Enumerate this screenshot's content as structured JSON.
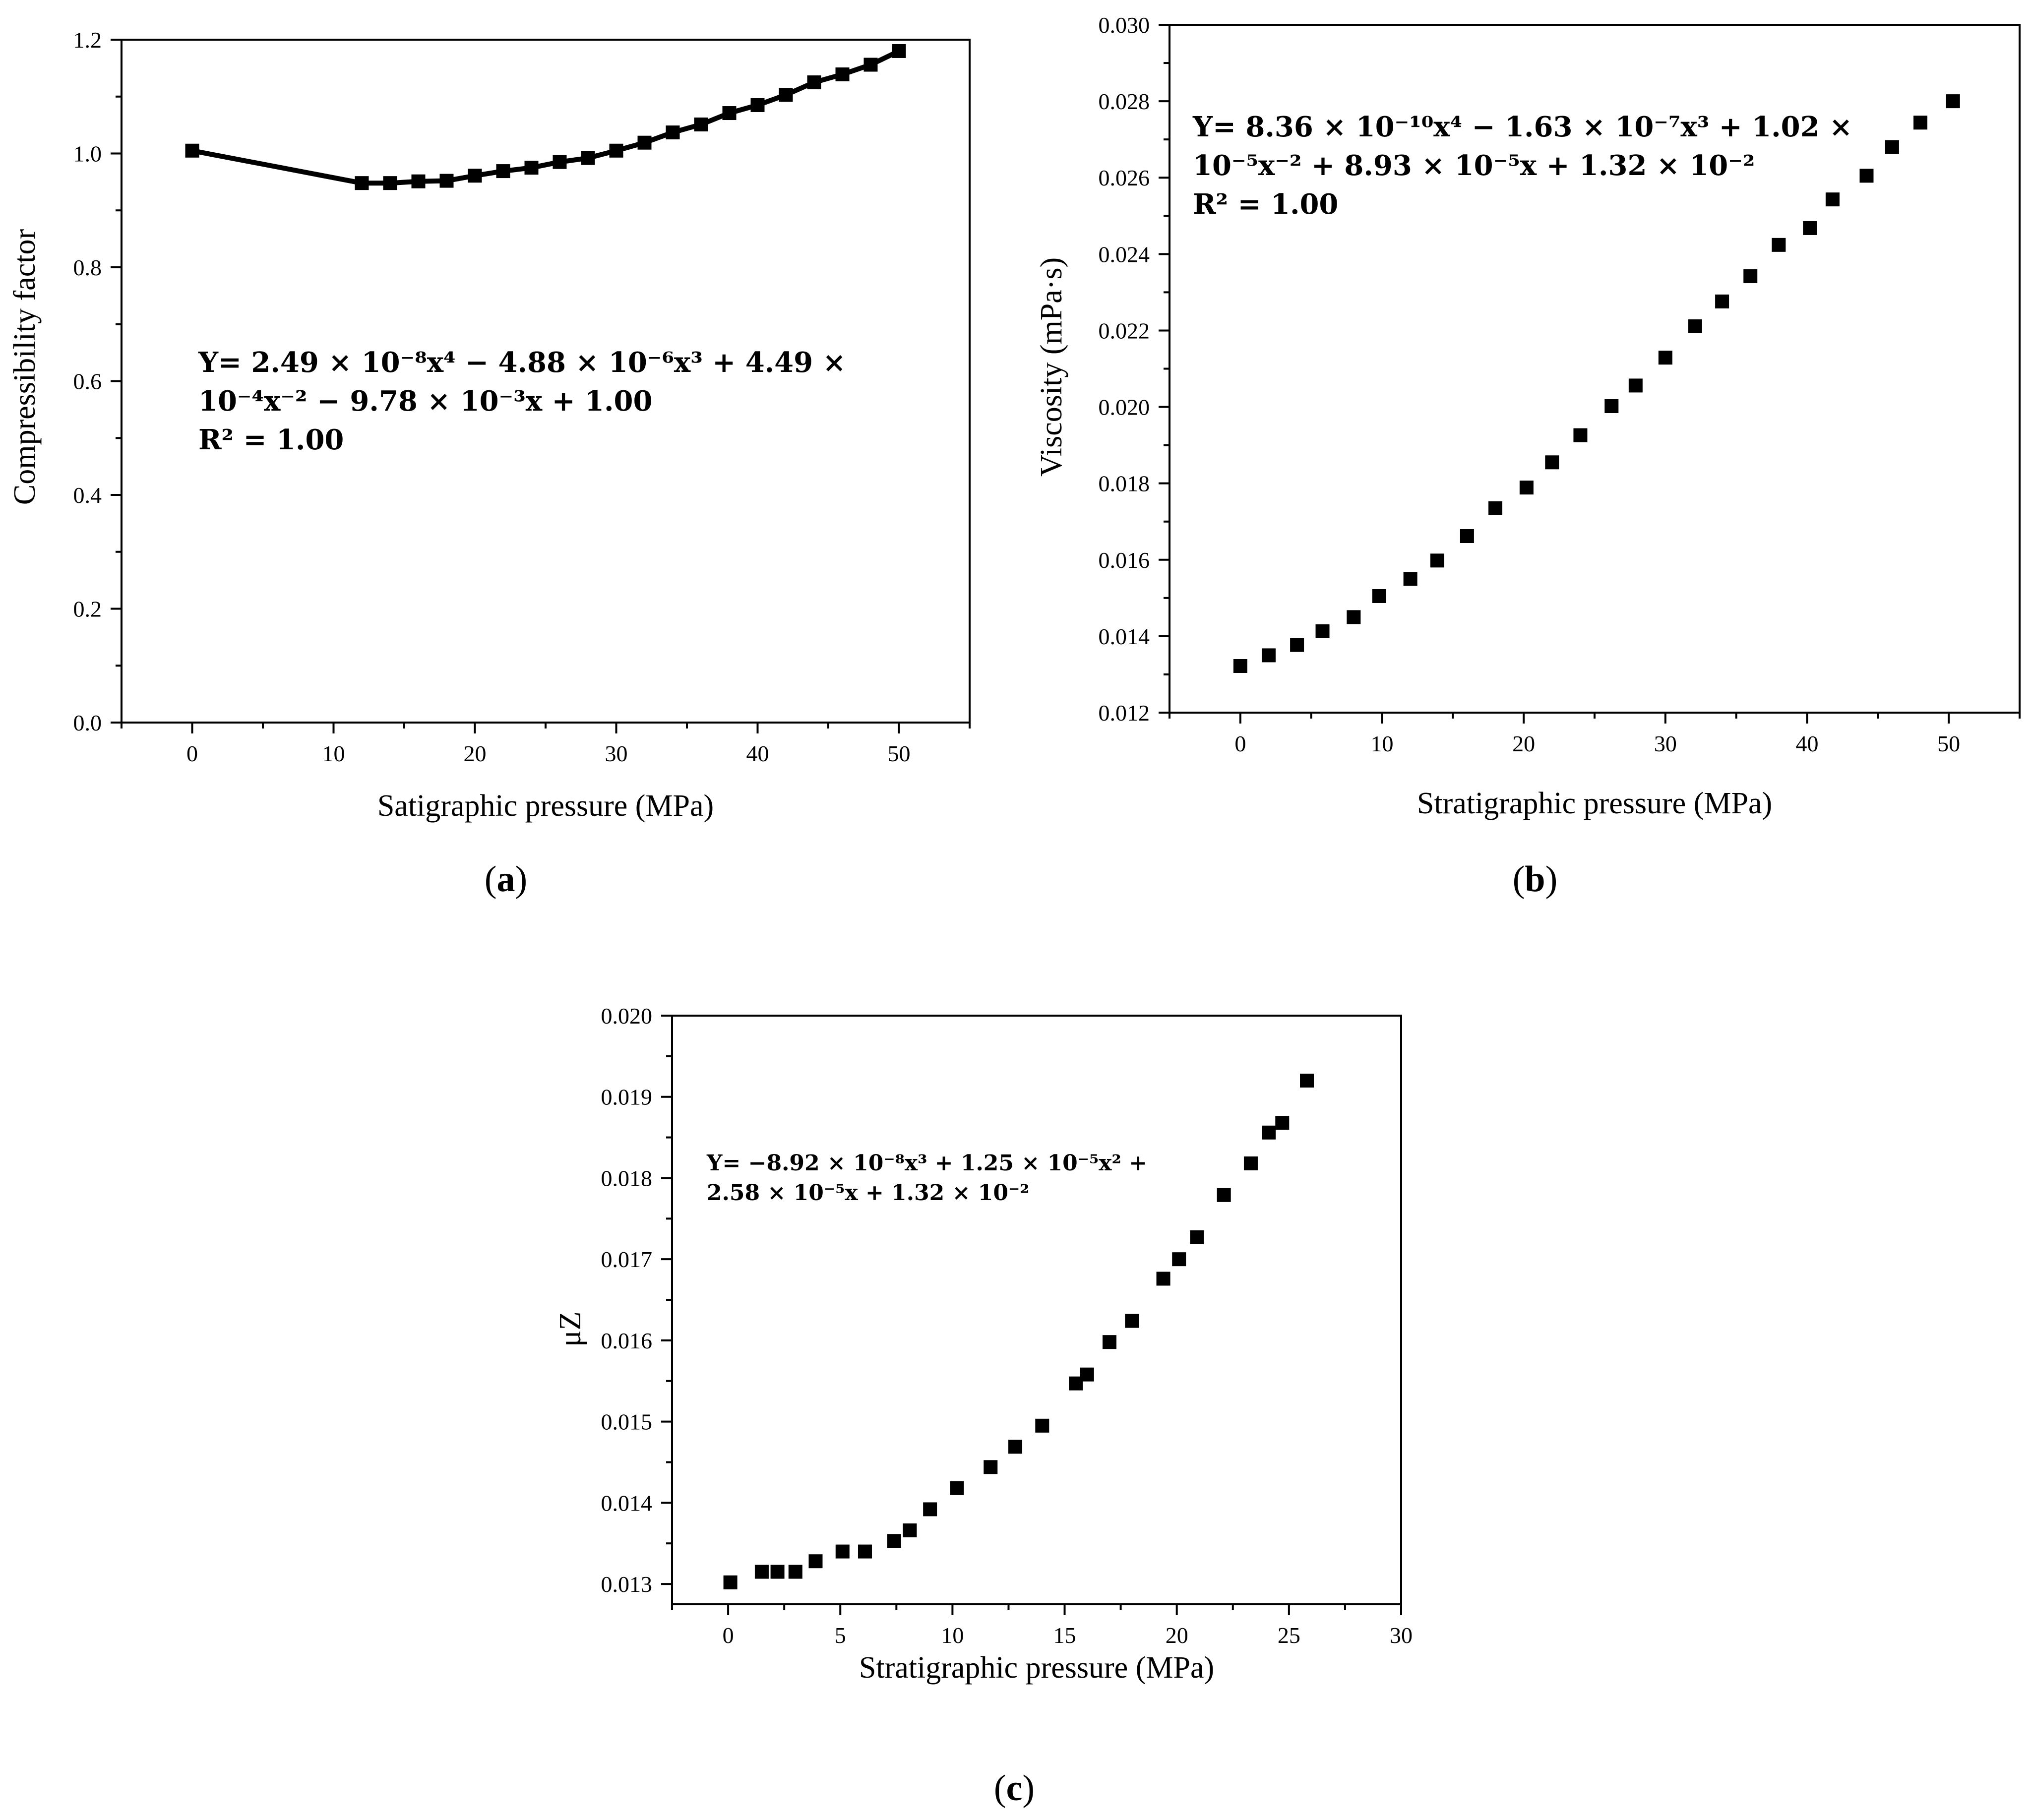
{
  "chart_data": [
    {
      "type": "line",
      "panel_label": "a",
      "xlabel": "Satigraphic pressure (MPa)",
      "ylabel": "Compressibility factor",
      "xlim": [
        -5,
        55
      ],
      "ylim": [
        0,
        1.2
      ],
      "xticks": [
        "0",
        "10",
        "20",
        "30",
        "40",
        "50"
      ],
      "yticks": [
        "0.0",
        "0.2",
        "0.4",
        "0.6",
        "0.8",
        "1.0",
        "1.2"
      ],
      "equation_lines": [
        "Y= 2.49 × 10⁻⁸x⁴ − 4.88 × 10⁻⁶x³ + 4.49 ×",
        "10⁻⁴x⁻² − 9.78 × 10⁻³x + 1.00",
        " R² = 1.00"
      ],
      "series": [
        {
          "marker": "square",
          "x": [
            0,
            12,
            14,
            16,
            18,
            20,
            22,
            24,
            26,
            28,
            30,
            32,
            34,
            36,
            38,
            40,
            42,
            44,
            46,
            48,
            50
          ],
          "y": [
            1.005,
            0.948,
            0.948,
            0.951,
            0.952,
            0.961,
            0.969,
            0.975,
            0.985,
            0.992,
            1.005,
            1.019,
            1.037,
            1.051,
            1.071,
            1.085,
            1.103,
            1.125,
            1.139,
            1.156,
            1.18
          ]
        }
      ]
    },
    {
      "type": "scatter",
      "panel_label": "b",
      "xlabel": "Stratigraphic pressure (MPa)",
      "ylabel": "Viscosity (mPa·s)",
      "xlim": [
        -5,
        55
      ],
      "ylim": [
        0.012,
        0.03
      ],
      "xticks": [
        "0",
        "10",
        "20",
        "30",
        "40",
        "50"
      ],
      "yticks": [
        "0.012",
        "0.014",
        "0.016",
        "0.018",
        "0.020",
        "0.022",
        "0.024",
        "0.026",
        "0.028",
        "0.030"
      ],
      "equation_lines": [
        "Y= 8.36 × 10⁻¹⁰x⁴ − 1.63 × 10⁻⁷x³ + 1.02 ×",
        "10⁻⁵x⁻² + 8.93 × 10⁻⁵x + 1.32 × 10⁻²",
        " R² = 1.00"
      ],
      "series": [
        {
          "marker": "square",
          "x": [
            0,
            2,
            4,
            5.8,
            8,
            9.8,
            12,
            13.9,
            16,
            18,
            20.2,
            22,
            24,
            26.2,
            27.9,
            30,
            32.1,
            34,
            36,
            38,
            40.2,
            41.8,
            44.2,
            46,
            48,
            50.3
          ],
          "y": [
            0.01322,
            0.0135,
            0.01377,
            0.01413,
            0.0145,
            0.01505,
            0.0155,
            0.01598,
            0.01662,
            0.01735,
            0.01789,
            0.01855,
            0.01926,
            0.02002,
            0.02056,
            0.02129,
            0.02211,
            0.02276,
            0.02342,
            0.02424,
            0.02468,
            0.02543,
            0.02605,
            0.0268,
            0.02744,
            0.028
          ]
        }
      ]
    },
    {
      "type": "scatter",
      "panel_label": "c",
      "xlabel": "Stratigraphic pressure (MPa)",
      "ylabel": "μZ",
      "xlim": [
        -2.5,
        30
      ],
      "ylim": [
        0.01275,
        0.02
      ],
      "xticks": [
        "0",
        "5",
        "10",
        "15",
        "20",
        "25",
        "30"
      ],
      "yticks": [
        "0.013",
        "0.014",
        "0.015",
        "0.016",
        "0.017",
        "0.018",
        "0.019",
        "0.020"
      ],
      "equation_lines": [
        "Y= −8.92 × 10⁻⁸x³ + 1.25 × 10⁻⁵x² +",
        "2.58 × 10⁻⁵x + 1.32 × 10⁻²"
      ],
      "series": [
        {
          "marker": "square",
          "x": [
            0.1,
            1.5,
            2.2,
            3,
            3.9,
            5.1,
            6.1,
            7.4,
            8.1,
            9,
            10.2,
            11.7,
            12.8,
            14,
            15.5,
            16,
            17,
            18,
            19.4,
            20.1,
            20.9,
            22.1,
            23.3,
            24.1,
            24.7,
            25.8
          ],
          "y": [
            0.01302,
            0.01315,
            0.01315,
            0.01315,
            0.01328,
            0.0134,
            0.0134,
            0.01353,
            0.01366,
            0.01392,
            0.01418,
            0.01444,
            0.01469,
            0.01495,
            0.01547,
            0.01558,
            0.01598,
            0.01624,
            0.01676,
            0.017,
            0.01727,
            0.01779,
            0.01818,
            0.01856,
            0.01868,
            0.0192
          ]
        }
      ]
    }
  ]
}
